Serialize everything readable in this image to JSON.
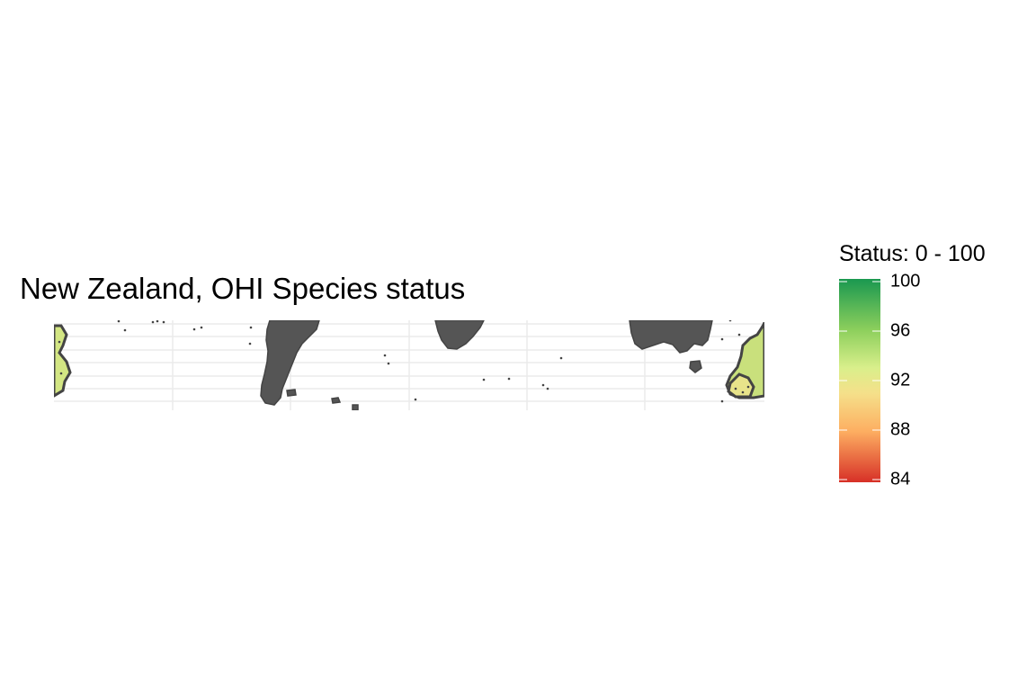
{
  "title": "New Zealand, OHI Species status",
  "legend": {
    "title": "Status: 0 - 100",
    "ticks": [
      "100",
      "96",
      "92",
      "88",
      "84"
    ],
    "tick_values": [
      100,
      96,
      92,
      88,
      84
    ],
    "range": [
      84,
      100
    ],
    "color_stops": [
      {
        "value": 100,
        "color": "#1a9850"
      },
      {
        "value": 96,
        "color": "#8ccf5c"
      },
      {
        "value": 93,
        "color": "#d9ef8b"
      },
      {
        "value": 91,
        "color": "#f5e08a"
      },
      {
        "value": 88,
        "color": "#fdae61"
      },
      {
        "value": 84,
        "color": "#d73027"
      }
    ]
  },
  "map": {
    "land_color": "#555555",
    "outline_color": "#444444",
    "grid": true,
    "region_status_colors": [
      "#c9e07c",
      "#e8e48a",
      "#d3e683"
    ]
  }
}
